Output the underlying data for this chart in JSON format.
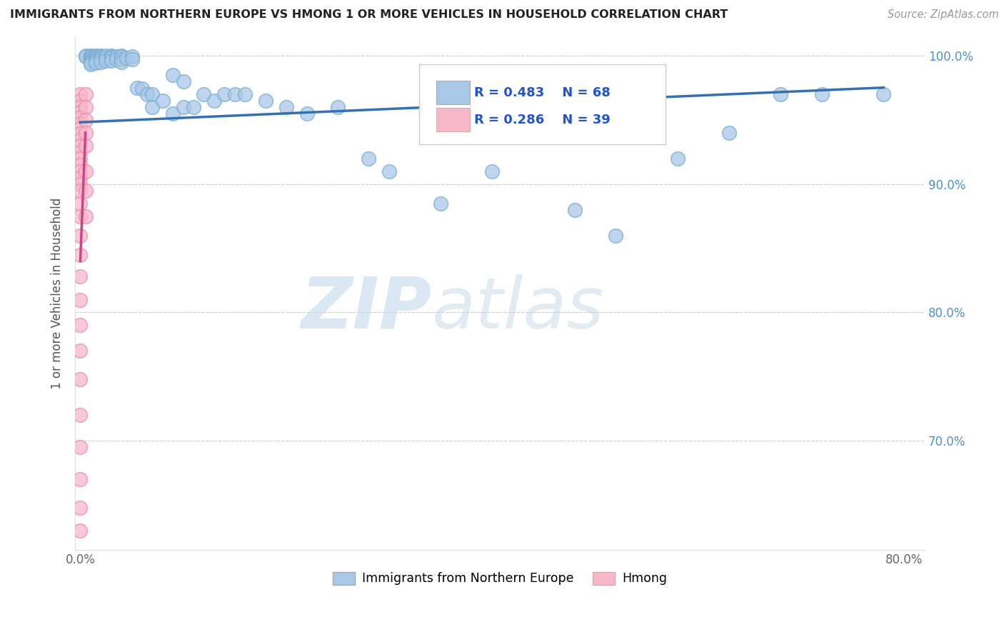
{
  "title": "IMMIGRANTS FROM NORTHERN EUROPE VS HMONG 1 OR MORE VEHICLES IN HOUSEHOLD CORRELATION CHART",
  "source": "Source: ZipAtlas.com",
  "ylabel": "1 or more Vehicles in Household",
  "xlim": [
    -0.005,
    0.82
  ],
  "ylim": [
    0.615,
    1.015
  ],
  "xticks": [
    0.0,
    0.1,
    0.2,
    0.3,
    0.4,
    0.5,
    0.6,
    0.7,
    0.8
  ],
  "xticklabels": [
    "0.0%",
    "",
    "",
    "",
    "",
    "",
    "",
    "",
    "80.0%"
  ],
  "yticks": [
    0.7,
    0.8,
    0.9,
    1.0
  ],
  "yticklabels": [
    "70.0%",
    "80.0%",
    "90.0%",
    "100.0%"
  ],
  "legend_blue_label": "Immigrants from Northern Europe",
  "legend_pink_label": "Hmong",
  "R_blue": 0.483,
  "N_blue": 68,
  "R_pink": 0.286,
  "N_pink": 39,
  "watermark_zip": "ZIP",
  "watermark_atlas": "atlas",
  "blue_color": "#a8c8e8",
  "blue_edge_color": "#7aaed0",
  "blue_line_color": "#3570b0",
  "pink_color": "#f8b8cc",
  "pink_edge_color": "#e890a8",
  "pink_line_color": "#cc4488",
  "blue_scatter_x": [
    0.005,
    0.005,
    0.01,
    0.01,
    0.01,
    0.01,
    0.01,
    0.01,
    0.01,
    0.01,
    0.015,
    0.015,
    0.015,
    0.015,
    0.015,
    0.015,
    0.02,
    0.02,
    0.02,
    0.02,
    0.02,
    0.025,
    0.025,
    0.025,
    0.03,
    0.03,
    0.03,
    0.03,
    0.035,
    0.035,
    0.04,
    0.04,
    0.04,
    0.04,
    0.045,
    0.05,
    0.05,
    0.055,
    0.06,
    0.065,
    0.07,
    0.07,
    0.08,
    0.09,
    0.09,
    0.1,
    0.1,
    0.11,
    0.12,
    0.13,
    0.14,
    0.15,
    0.16,
    0.18,
    0.2,
    0.22,
    0.25,
    0.28,
    0.3,
    0.35,
    0.4,
    0.48,
    0.52,
    0.58,
    0.63,
    0.68,
    0.72,
    0.78
  ],
  "blue_scatter_y": [
    1.0,
    0.999,
    1.0,
    0.999,
    0.998,
    0.997,
    0.996,
    0.995,
    0.994,
    0.993,
    1.0,
    0.999,
    0.998,
    0.997,
    0.996,
    0.994,
    1.0,
    0.999,
    0.998,
    0.997,
    0.995,
    1.0,
    0.998,
    0.996,
    1.0,
    0.999,
    0.998,
    0.996,
    0.999,
    0.997,
    1.0,
    0.999,
    0.997,
    0.995,
    0.998,
    0.999,
    0.997,
    0.975,
    0.974,
    0.97,
    0.97,
    0.96,
    0.965,
    0.985,
    0.955,
    0.98,
    0.96,
    0.96,
    0.97,
    0.965,
    0.97,
    0.97,
    0.97,
    0.965,
    0.96,
    0.955,
    0.96,
    0.92,
    0.91,
    0.885,
    0.91,
    0.88,
    0.86,
    0.92,
    0.94,
    0.97,
    0.97,
    0.97
  ],
  "pink_scatter_x": [
    0.0,
    0.0,
    0.0,
    0.0,
    0.0,
    0.0,
    0.0,
    0.0,
    0.0,
    0.0,
    0.0,
    0.0,
    0.0,
    0.0,
    0.0,
    0.0,
    0.0,
    0.0,
    0.0,
    0.0,
    0.0,
    0.0,
    0.0,
    0.0,
    0.0,
    0.0,
    0.0,
    0.0,
    0.0,
    0.0,
    0.0,
    0.005,
    0.005,
    0.005,
    0.005,
    0.005,
    0.005,
    0.005,
    0.005
  ],
  "pink_scatter_y": [
    0.97,
    0.965,
    0.96,
    0.956,
    0.952,
    0.947,
    0.943,
    0.939,
    0.934,
    0.93,
    0.925,
    0.92,
    0.915,
    0.91,
    0.905,
    0.9,
    0.895,
    0.885,
    0.875,
    0.86,
    0.845,
    0.828,
    0.81,
    0.79,
    0.77,
    0.748,
    0.72,
    0.695,
    0.67,
    0.648,
    0.63,
    0.97,
    0.96,
    0.95,
    0.94,
    0.93,
    0.91,
    0.895,
    0.875
  ],
  "blue_trendline_x": [
    0.0,
    0.78
  ],
  "blue_trendline_y": [
    0.948,
    0.975
  ],
  "pink_trendline_x": [
    0.0,
    0.005
  ],
  "pink_trendline_y": [
    0.84,
    0.94
  ]
}
